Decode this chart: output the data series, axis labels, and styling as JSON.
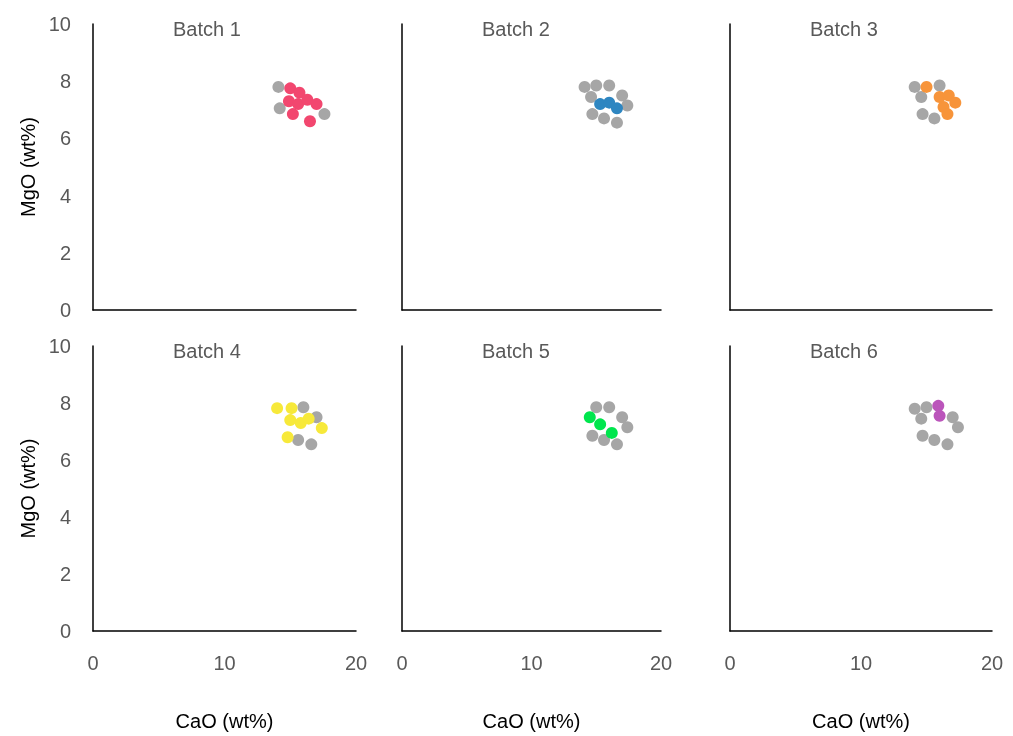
{
  "chart_data": [
    {
      "type": "scatter",
      "title": "Batch 1",
      "ylabel": "MgO (wt%)",
      "xlim": [
        0,
        20
      ],
      "xticks": [
        0,
        10,
        20
      ],
      "ylim": [
        0,
        10
      ],
      "yticks": [
        0,
        2,
        4,
        6,
        8,
        10
      ],
      "grid": false,
      "marker": "circle",
      "tick_labels": "y",
      "series": [
        {
          "color": "#a6a6a6",
          "x": [
            14.1,
            14.2,
            17.6
          ],
          "values": [
            7.8,
            7.05,
            6.85
          ]
        },
        {
          "color": "#f2476f",
          "x": [
            15.0,
            15.7,
            14.9,
            15.6,
            16.3,
            17.0,
            15.2,
            16.5
          ],
          "values": [
            7.75,
            7.6,
            7.3,
            7.2,
            7.35,
            7.2,
            6.85,
            6.6
          ]
        }
      ]
    },
    {
      "type": "scatter",
      "title": "Batch 2",
      "xlim": [
        0,
        20
      ],
      "xticks": [
        0,
        10,
        20
      ],
      "ylim": [
        0,
        10
      ],
      "yticks": [
        0,
        2,
        4,
        6,
        8,
        10
      ],
      "grid": false,
      "marker": "circle",
      "tick_labels": false,
      "series": [
        {
          "color": "#a6a6a6",
          "x": [
            14.1,
            15.0,
            16.0,
            14.6,
            14.7,
            15.6,
            16.6,
            17.4,
            17.0
          ],
          "values": [
            7.8,
            7.85,
            7.85,
            7.45,
            6.85,
            6.7,
            6.55,
            7.15,
            7.5
          ]
        },
        {
          "color": "#2e86c1",
          "x": [
            15.3,
            16.0,
            16.6
          ],
          "values": [
            7.2,
            7.25,
            7.05
          ]
        }
      ]
    },
    {
      "type": "scatter",
      "title": "Batch 3",
      "xlim": [
        0,
        20
      ],
      "xticks": [
        0,
        10,
        20
      ],
      "ylim": [
        0,
        10
      ],
      "yticks": [
        0,
        2,
        4,
        6,
        8,
        10
      ],
      "grid": false,
      "marker": "circle",
      "tick_labels": false,
      "series": [
        {
          "color": "#a6a6a6",
          "x": [
            14.1,
            16.0,
            14.6,
            14.7,
            15.6
          ],
          "values": [
            7.8,
            7.85,
            7.45,
            6.85,
            6.7
          ]
        },
        {
          "color": "#f7943a",
          "x": [
            15.0,
            16.0,
            16.7,
            17.2,
            16.3,
            16.6
          ],
          "values": [
            7.8,
            7.45,
            7.5,
            7.25,
            7.1,
            6.85
          ]
        }
      ]
    },
    {
      "type": "scatter",
      "title": "Batch 4",
      "ylabel": "MgO (wt%)",
      "xlabel": "CaO (wt%)",
      "xlim": [
        0,
        20
      ],
      "xticks": [
        0,
        10,
        20
      ],
      "ylim": [
        0,
        10
      ],
      "yticks": [
        0,
        2,
        4,
        6,
        8,
        10
      ],
      "grid": false,
      "marker": "circle",
      "series": [
        {
          "color": "#a6a6a6",
          "x": [
            16.0,
            15.6,
            16.6,
            17.0
          ],
          "values": [
            7.85,
            6.7,
            6.55,
            7.5
          ]
        },
        {
          "color": "#f7e93a",
          "x": [
            14.0,
            15.1,
            15.0,
            15.8,
            16.4,
            17.4,
            14.8
          ],
          "values": [
            7.82,
            7.82,
            7.4,
            7.3,
            7.45,
            7.12,
            6.8
          ]
        }
      ]
    },
    {
      "type": "scatter",
      "title": "Batch 5",
      "xlabel": "CaO (wt%)",
      "xlim": [
        0,
        20
      ],
      "xticks": [
        0,
        10,
        20
      ],
      "ylim": [
        0,
        10
      ],
      "yticks": [
        0,
        2,
        4,
        6,
        8,
        10
      ],
      "grid": false,
      "marker": "circle",
      "tick_labels": "x",
      "series": [
        {
          "color": "#a6a6a6",
          "x": [
            15.0,
            16.0,
            14.7,
            15.6,
            16.6,
            17.4,
            17.0
          ],
          "values": [
            7.85,
            7.85,
            6.85,
            6.7,
            6.55,
            7.15,
            7.5
          ]
        },
        {
          "color": "#00e64d",
          "x": [
            14.5,
            15.3,
            16.2
          ],
          "values": [
            7.5,
            7.25,
            6.95
          ]
        }
      ]
    },
    {
      "type": "scatter",
      "title": "Batch 6",
      "xlabel": "CaO (wt%)",
      "xlim": [
        0,
        20
      ],
      "xticks": [
        0,
        10,
        20
      ],
      "ylim": [
        0,
        10
      ],
      "yticks": [
        0,
        2,
        4,
        6,
        8,
        10
      ],
      "grid": false,
      "marker": "circle",
      "tick_labels": "x",
      "series": [
        {
          "color": "#a6a6a6",
          "x": [
            14.1,
            15.0,
            14.6,
            14.7,
            15.6,
            16.6,
            17.4,
            17.0
          ],
          "values": [
            7.8,
            7.85,
            7.45,
            6.85,
            6.7,
            6.55,
            7.15,
            7.5
          ]
        },
        {
          "color": "#bb55bb",
          "x": [
            15.9,
            16.0
          ],
          "values": [
            7.9,
            7.55
          ]
        }
      ]
    }
  ]
}
